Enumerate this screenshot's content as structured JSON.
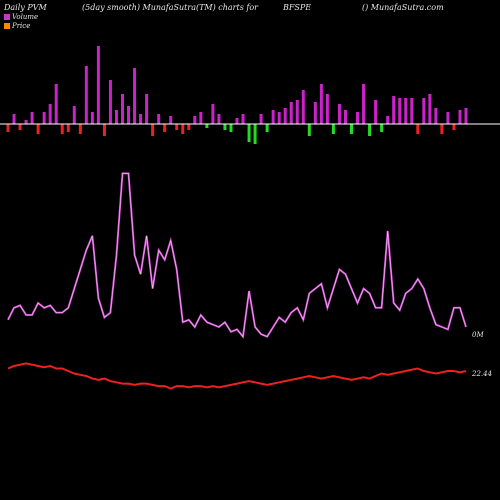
{
  "header": {
    "left": "Daily PVM",
    "mid": "(5day smooth) MunafaSutra(TM) charts for",
    "symbol": "BFSPE",
    "right": "() MunafaSutra.com"
  },
  "legend": [
    {
      "label": "Volume",
      "color": "#cc33cc"
    },
    {
      "label": "Price",
      "color": "#ff8800"
    }
  ],
  "end_labels": {
    "volume": "0M",
    "price": "22.44"
  },
  "colors": {
    "bar_up": "#cc22cc",
    "bar_down_red": "#ee2222",
    "bar_down_green": "#22dd22",
    "volume_line": "#cc44cc",
    "price_line": "#ee2020",
    "baseline": "#ffffff"
  },
  "chart_data": {
    "type": "line",
    "n_points": 77,
    "pvm_bars": [
      {
        "value": 8,
        "color": "red"
      },
      {
        "value": 10,
        "color": "magenta"
      },
      {
        "value": 6,
        "color": "red"
      },
      {
        "value": 4,
        "color": "magenta"
      },
      {
        "value": 12,
        "color": "magenta"
      },
      {
        "value": 10,
        "color": "red"
      },
      {
        "value": 12,
        "color": "magenta"
      },
      {
        "value": 20,
        "color": "magenta"
      },
      {
        "value": 40,
        "color": "magenta"
      },
      {
        "value": 10,
        "color": "red"
      },
      {
        "value": 8,
        "color": "red"
      },
      {
        "value": 18,
        "color": "magenta"
      },
      {
        "value": 10,
        "color": "red"
      },
      {
        "value": 58,
        "color": "magenta"
      },
      {
        "value": 12,
        "color": "magenta"
      },
      {
        "value": 78,
        "color": "magenta"
      },
      {
        "value": 12,
        "color": "red"
      },
      {
        "value": 44,
        "color": "magenta"
      },
      {
        "value": 14,
        "color": "magenta"
      },
      {
        "value": 30,
        "color": "magenta"
      },
      {
        "value": 18,
        "color": "magenta"
      },
      {
        "value": 56,
        "color": "magenta"
      },
      {
        "value": 10,
        "color": "magenta"
      },
      {
        "value": 30,
        "color": "magenta"
      },
      {
        "value": 12,
        "color": "red"
      },
      {
        "value": 10,
        "color": "magenta"
      },
      {
        "value": 8,
        "color": "red"
      },
      {
        "value": 8,
        "color": "magenta"
      },
      {
        "value": 6,
        "color": "red"
      },
      {
        "value": 10,
        "color": "red"
      },
      {
        "value": 6,
        "color": "red"
      },
      {
        "value": 8,
        "color": "magenta"
      },
      {
        "value": 12,
        "color": "magenta"
      },
      {
        "value": 4,
        "color": "green"
      },
      {
        "value": 20,
        "color": "magenta"
      },
      {
        "value": 10,
        "color": "magenta"
      },
      {
        "value": 6,
        "color": "green"
      },
      {
        "value": 8,
        "color": "green"
      },
      {
        "value": 6,
        "color": "magenta"
      },
      {
        "value": 10,
        "color": "magenta"
      },
      {
        "value": 18,
        "color": "green"
      },
      {
        "value": 20,
        "color": "green"
      },
      {
        "value": 10,
        "color": "magenta"
      },
      {
        "value": 8,
        "color": "green"
      },
      {
        "value": 14,
        "color": "magenta"
      },
      {
        "value": 12,
        "color": "magenta"
      },
      {
        "value": 16,
        "color": "magenta"
      },
      {
        "value": 22,
        "color": "magenta"
      },
      {
        "value": 24,
        "color": "magenta"
      },
      {
        "value": 34,
        "color": "magenta"
      },
      {
        "value": 12,
        "color": "green"
      },
      {
        "value": 22,
        "color": "magenta"
      },
      {
        "value": 40,
        "color": "magenta"
      },
      {
        "value": 30,
        "color": "magenta"
      },
      {
        "value": 10,
        "color": "green"
      },
      {
        "value": 20,
        "color": "magenta"
      },
      {
        "value": 14,
        "color": "magenta"
      },
      {
        "value": 10,
        "color": "green"
      },
      {
        "value": 12,
        "color": "magenta"
      },
      {
        "value": 40,
        "color": "magenta"
      },
      {
        "value": 12,
        "color": "green"
      },
      {
        "value": 24,
        "color": "magenta"
      },
      {
        "value": 8,
        "color": "green"
      },
      {
        "value": 8,
        "color": "magenta"
      },
      {
        "value": 28,
        "color": "magenta"
      },
      {
        "value": 26,
        "color": "magenta"
      },
      {
        "value": 26,
        "color": "magenta"
      },
      {
        "value": 26,
        "color": "magenta"
      },
      {
        "value": 10,
        "color": "red"
      },
      {
        "value": 26,
        "color": "magenta"
      },
      {
        "value": 30,
        "color": "magenta"
      },
      {
        "value": 16,
        "color": "magenta"
      },
      {
        "value": 10,
        "color": "red"
      },
      {
        "value": 12,
        "color": "magenta"
      },
      {
        "value": 6,
        "color": "red"
      },
      {
        "value": 14,
        "color": "magenta"
      },
      {
        "value": 16,
        "color": "magenta"
      }
    ],
    "volume": [
      23,
      28,
      29,
      25,
      25,
      30,
      28,
      29,
      26,
      26,
      28,
      36,
      44,
      52,
      58,
      32,
      24,
      26,
      50,
      84,
      84,
      50,
      42,
      58,
      36,
      52,
      48,
      56,
      44,
      22,
      23,
      20,
      25,
      22,
      21,
      20,
      22,
      18,
      19,
      16,
      35,
      20,
      17,
      16,
      20,
      24,
      22,
      26,
      28,
      23,
      34,
      36,
      38,
      28,
      36,
      44,
      42,
      36,
      30,
      36,
      34,
      28,
      28,
      60,
      30,
      27,
      34,
      36,
      40,
      36,
      28,
      21,
      20,
      19,
      28,
      28,
      20
    ],
    "price": [
      52,
      54,
      55,
      56,
      55,
      54,
      53,
      54,
      52,
      52,
      50,
      48,
      47,
      46,
      44,
      43,
      44,
      42,
      41,
      40,
      40,
      39,
      40,
      40,
      39,
      38,
      38,
      36,
      38,
      38,
      37,
      38,
      38,
      37,
      38,
      37,
      38,
      39,
      40,
      41,
      42,
      41,
      40,
      39,
      40,
      41,
      42,
      43,
      44,
      45,
      46,
      45,
      44,
      45,
      46,
      45,
      44,
      43,
      44,
      45,
      44,
      46,
      48,
      47,
      48,
      49,
      50,
      51,
      52,
      50,
      49,
      48,
      49,
      50,
      50,
      49,
      50
    ],
    "legend_position": "top-left"
  }
}
